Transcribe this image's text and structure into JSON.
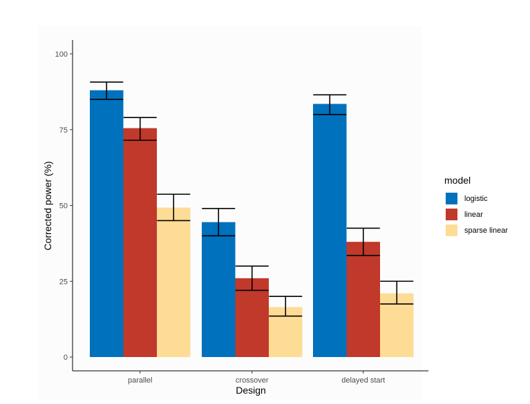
{
  "chart_data": {
    "type": "bar",
    "title": "",
    "xlabel": "Design",
    "ylabel": "Corrected power (%)",
    "categories": [
      "parallel",
      "crossover",
      "delayed start"
    ],
    "ylim": [
      0,
      100
    ],
    "yticks": [
      0,
      25,
      50,
      75,
      100
    ],
    "grid": false,
    "legend_title": "model",
    "legend_position": "right",
    "series": [
      {
        "name": "logistic",
        "color": "#0071bc",
        "values": [
          88,
          44.5,
          83.5
        ],
        "error_low": [
          85,
          40,
          80
        ],
        "error_high": [
          90.7,
          49,
          86.5
        ]
      },
      {
        "name": "linear",
        "color": "#c0392b",
        "values": [
          75.5,
          26,
          38
        ],
        "error_low": [
          71.5,
          22,
          33.5
        ],
        "error_high": [
          79,
          30,
          42.5
        ]
      },
      {
        "name": "sparse linear",
        "color": "#fddc96",
        "values": [
          49.3,
          16.5,
          21
        ],
        "error_low": [
          45,
          13.5,
          17.5
        ],
        "error_high": [
          53.7,
          20,
          25
        ]
      }
    ]
  }
}
